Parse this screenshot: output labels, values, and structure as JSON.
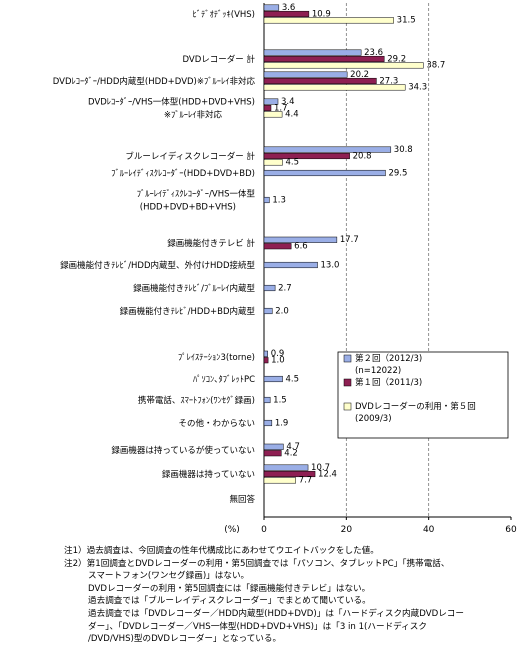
{
  "chart_data": {
    "type": "bar",
    "orientation": "horizontal",
    "categories": [
      "ﾋﾞﾃﾞｵﾃﾞｯｷ(VHS)",
      "DVDレコーダー 計",
      "DVDﾚｺｰﾀﾞｰ/HDD内蔵型(HDD+DVD)※ﾌﾞﾙｰﾚｲ非対応",
      "DVDﾚｺｰﾀﾞｰ/VHS一体型(HDD+DVD+VHS)\n※ﾌﾞﾙｰﾚｲ非対応",
      "ブルーレイディスクレコーダー 計",
      "ﾌﾞﾙｰﾚｲﾃﾞｨｽｸﾚｺｰﾀﾞｰ(HDD+DVD+BD)",
      "ﾌﾞﾙｰﾚｲﾃﾞｨｽｸﾚｺｰﾀﾞｰ/VHS一体型\n(HDD+DVD+BD+VHS)",
      "録画機能付きテレビ 計",
      "録画機能付きﾃﾚﾋﾞ/HDD内蔵型、外付けHDD接続型",
      "録画機能付きﾃﾚﾋﾞ/ﾌﾞﾙｰﾚｲ内蔵型",
      "録画機能付きﾃﾚﾋﾞ/HDD+BD内蔵型",
      "ﾌﾟﾚｲｽﾃｰｼｮﾝ3(torne)",
      "ﾊﾟｿｺﾝ､ﾀﾌﾞﾚｯﾄPC",
      "携帯電話、ｽﾏｰﾄﾌｫﾝ(ﾜﾝｾｸﾞ録画)",
      "その他・わからない",
      "録画機器は持っているが使っていない",
      "録画機器は持っていない",
      "無回答"
    ],
    "series": [
      {
        "name": "第２回（2012/3)\n(n=12022)",
        "color": "#9aaee6",
        "values": [
          3.6,
          23.6,
          20.2,
          3.4,
          30.8,
          29.5,
          1.3,
          17.7,
          13.0,
          2.7,
          2.0,
          0.9,
          4.5,
          1.5,
          1.9,
          4.7,
          10.7,
          null
        ]
      },
      {
        "name": "第１回（2011/3)",
        "color": "#8e1f52",
        "values": [
          10.9,
          29.2,
          27.3,
          1.7,
          20.8,
          null,
          null,
          6.6,
          null,
          null,
          null,
          1.0,
          null,
          null,
          null,
          4.2,
          12.4,
          null
        ]
      },
      {
        "name": "DVDレコーダーの利用・第５回\n(2009/3)",
        "color": "#ffffcc",
        "values": [
          31.5,
          38.7,
          34.3,
          4.4,
          4.5,
          null,
          null,
          null,
          null,
          null,
          null,
          null,
          null,
          null,
          null,
          null,
          7.7,
          null
        ]
      }
    ],
    "xlabel": "(%)",
    "xlim": [
      0,
      60
    ],
    "xticks": [
      "0",
      "20",
      "40",
      "60"
    ],
    "grid": "dashed vertical at 20, 40",
    "legend_position": "bottom-right inside plot"
  },
  "notes": [
    "注1）過去調査は、今回調査の性年代構成比にあわせてウエイトバックをした値。",
    "注2）第1回調査とDVDレコーダーの利用・第5回調査では「パソコン、タブレットPC」「携帯電話、",
    "スマートフォン(ワンセグ録画)」はない。",
    "DVDレコーダーの利用・第5回調査には「録画機能付きテレビ」はない。",
    "過去調査では「ブルーレイディスクレコーダー」でまとめて聞いている。",
    "過去調査では「DVDレコーダー／HDD内蔵型(HDD+DVD)」は「ハードディスク内蔵DVDレコー",
    "ダー」、「DVDレコーダー／VHS一体型(HDD+DVD+VHS)」は「3 in 1(ハードディスク",
    "/DVD/VHS)型のDVDレコーダー」となっている。"
  ]
}
